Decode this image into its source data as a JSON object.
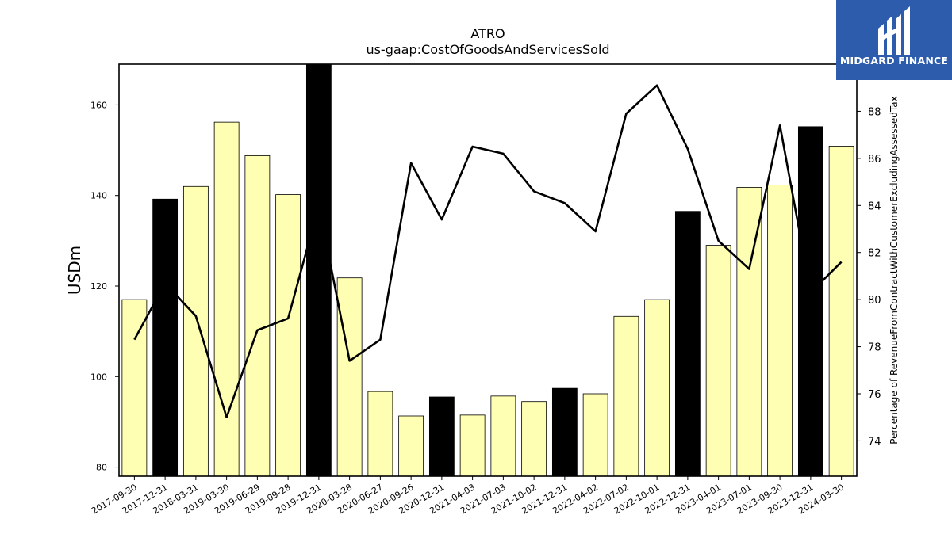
{
  "logo": {
    "name": "MIDGARD FINANCE",
    "bg": "#2d5cad"
  },
  "colors": {
    "bar_normal": "#ffffb3",
    "bar_highlight": "#000000",
    "line": "#000000"
  },
  "chart_data": {
    "type": "bar",
    "title": "ATRO",
    "subtitle": "us-gaap:CostOfGoodsAndServicesSold",
    "ylabel": "USDm",
    "y2label": "Percentage of RevenueFromContractWithCustomerExcludingAssessedTax",
    "ylim": [
      78,
      169
    ],
    "y2lim": [
      72.5,
      90
    ],
    "yticks": [
      80,
      100,
      120,
      140,
      160
    ],
    "y2ticks": [
      74,
      76,
      78,
      80,
      82,
      84,
      86,
      88
    ],
    "categories": [
      "2017-09-30",
      "2017-12-31",
      "2018-03-31",
      "2019-03-30",
      "2019-06-29",
      "2019-09-28",
      "2019-12-31",
      "2020-03-28",
      "2020-06-27",
      "2020-09-26",
      "2020-12-31",
      "2021-04-03",
      "2021-07-03",
      "2021-10-02",
      "2021-12-31",
      "2022-04-02",
      "2022-07-02",
      "2022-10-01",
      "2022-12-31",
      "2023-04-01",
      "2023-07-01",
      "2023-09-30",
      "2023-12-31",
      "2024-03-30"
    ],
    "highlighted": [
      false,
      true,
      false,
      false,
      false,
      false,
      true,
      false,
      false,
      false,
      true,
      false,
      false,
      false,
      true,
      false,
      false,
      false,
      true,
      false,
      false,
      false,
      true,
      false
    ],
    "series": [
      {
        "type": "bar",
        "values": [
          117,
          139.2,
          142,
          156.2,
          148.8,
          140.2,
          169,
          121.8,
          96.7,
          91.3,
          95.5,
          91.5,
          95.7,
          94.5,
          97.4,
          96.2,
          113.3,
          117,
          136.5,
          129,
          141.8,
          142.3,
          155.2,
          150.9
        ]
      },
      {
        "type": "line",
        "axis": "right",
        "values": [
          78.3,
          80.7,
          79.3,
          75.0,
          78.7,
          79.2,
          84.0,
          77.4,
          78.3,
          85.8,
          83.4,
          86.5,
          86.2,
          84.6,
          84.1,
          82.9,
          87.9,
          89.1,
          86.4,
          82.5,
          81.3,
          87.4,
          80.3,
          81.6
        ]
      }
    ]
  }
}
